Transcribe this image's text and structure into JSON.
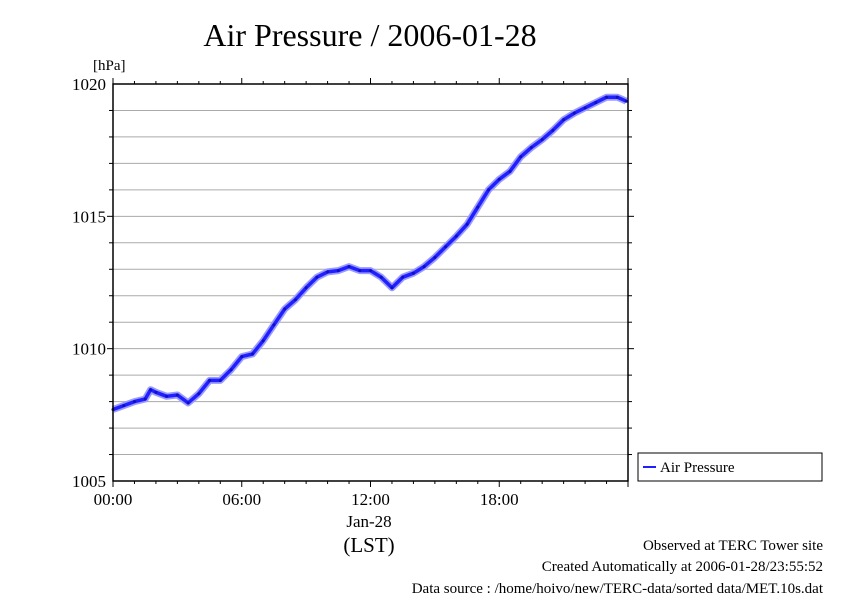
{
  "chart_data": {
    "type": "line",
    "title": "Air Pressure / 2006-01-28",
    "ylabel": "[hPa]",
    "xlabel": "(LST)",
    "x_date_label": "Jan-28",
    "ylim": [
      1005,
      1020
    ],
    "xlim_hours": [
      0,
      24
    ],
    "y_ticks": [
      1005,
      1010,
      1015,
      1020
    ],
    "x_ticks": [
      {
        "h": 0,
        "label": "00:00"
      },
      {
        "h": 6,
        "label": "06:00"
      },
      {
        "h": 12,
        "label": "12:00"
      },
      {
        "h": 18,
        "label": "18:00"
      }
    ],
    "grid": true,
    "legend": {
      "position": "right-bottom",
      "entries": [
        "Air Pressure"
      ]
    },
    "series": [
      {
        "name": "Air Pressure",
        "color": "#2020ff",
        "x_hours": [
          0,
          0.5,
          1,
          1.5,
          1.75,
          2,
          2.5,
          3,
          3.5,
          4,
          4.5,
          5,
          5.5,
          6,
          6.5,
          7,
          7.5,
          8,
          8.5,
          9,
          9.5,
          10,
          10.5,
          11,
          11.5,
          12,
          12.5,
          13,
          13.5,
          14,
          14.5,
          15,
          15.5,
          16,
          16.5,
          17,
          17.5,
          18,
          18.5,
          19,
          19.5,
          20,
          20.5,
          21,
          21.5,
          22,
          22.5,
          23,
          23.5,
          23.92
        ],
        "values": [
          1007.7,
          1007.85,
          1008.0,
          1008.1,
          1008.45,
          1008.35,
          1008.2,
          1008.25,
          1007.95,
          1008.3,
          1008.8,
          1008.8,
          1009.2,
          1009.7,
          1009.8,
          1010.3,
          1010.9,
          1011.5,
          1011.85,
          1012.3,
          1012.7,
          1012.9,
          1012.95,
          1013.1,
          1012.95,
          1012.95,
          1012.7,
          1012.3,
          1012.7,
          1012.85,
          1013.1,
          1013.45,
          1013.85,
          1014.25,
          1014.7,
          1015.35,
          1016.0,
          1016.4,
          1016.7,
          1017.25,
          1017.6,
          1017.9,
          1018.25,
          1018.65,
          1018.9,
          1019.1,
          1019.3,
          1019.5,
          1019.5,
          1019.35
        ]
      }
    ],
    "annotations": [
      "Observed at TERC Tower site",
      "Created Automatically at 2006-01-28/23:55:52",
      "Data source : /home/hoivo/new/TERC-data/sorted  data/MET.10s.dat"
    ]
  }
}
